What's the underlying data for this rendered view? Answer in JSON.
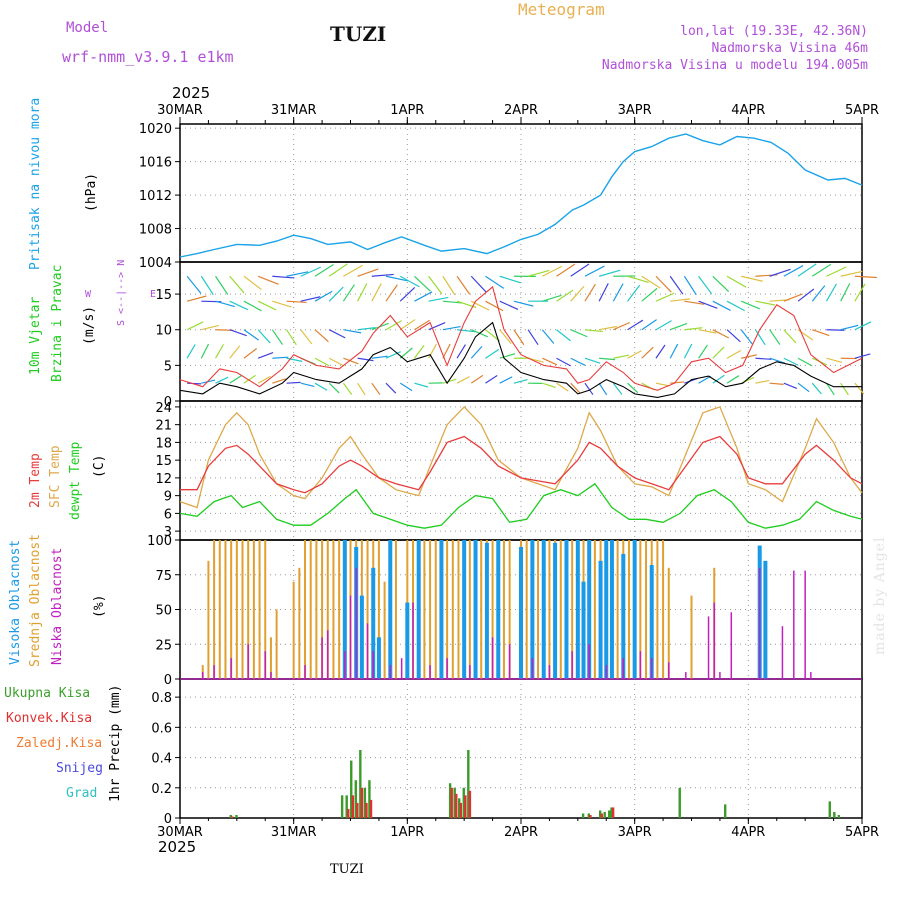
{
  "header": {
    "model_label": "Model",
    "model_name": "wrf-nmm_v3.9.1  e1km",
    "station": "TUZI",
    "title": "Meteogram",
    "coords": "lon,lat (19.33E, 42.36N)",
    "elevation": "Nadmorska Visina 46m",
    "model_elevation": "Nadmorska Visina u modelu 194.005m",
    "year_top": "2025",
    "year_bottom": "2025",
    "footer_station": "TUZI",
    "watermark": "made by Angel"
  },
  "time_axis": {
    "labels": [
      "30MAR",
      "31MAR",
      "1APR",
      "2APR",
      "3APR",
      "4APR",
      "5APR"
    ]
  },
  "panels": {
    "pressure": {
      "ylabel": "Pritisak na nivou mora",
      "unit": "(hPa)",
      "ticks": [
        "1004",
        "1008",
        "1012",
        "1016",
        "1020"
      ]
    },
    "wind": {
      "ylabel1": "10m Vjetar",
      "ylabel2": "Brzina i Pravac",
      "unit": "(m/s)",
      "ticks": [
        "0",
        "5",
        "10",
        "15"
      ],
      "compass_ns": "S <--|--> N",
      "compass_w": "W",
      "compass_e": "E"
    },
    "temp": {
      "ylabel1": "2m Temp",
      "ylabel2": "SFC Temp",
      "ylabel3": "dewpt Temp",
      "unit": "(C)",
      "ticks": [
        "3",
        "6",
        "9",
        "12",
        "15",
        "18",
        "21",
        "24"
      ]
    },
    "cloud": {
      "ylabel1": "Visoka Oblacnost",
      "ylabel2": "Srednja Oblacnost",
      "ylabel3": "Niska Oblacnost",
      "unit": "(%)",
      "ticks": [
        "0",
        "25",
        "50",
        "75",
        "100"
      ]
    },
    "precip": {
      "legend": [
        "Ukupna Kisa",
        "Konvek.Kisa",
        "Zaledj.Kisa",
        "Snijeg",
        "Grad"
      ],
      "unit": "1hr Precip (mm)",
      "ticks": [
        "0",
        "0.2",
        "0.4",
        "0.6",
        "0.8"
      ]
    }
  },
  "colors": {
    "pressure": "#1aa3e8",
    "t2m": "#e83c3c",
    "sfc": "#dea84a",
    "dewpoint": "#1fcc1f",
    "wind_speed": "#000000",
    "wind_gust": "#e83c3c",
    "high_cloud": "#1a9ae6",
    "mid_cloud": "#e0a030",
    "low_cloud": "#c020c0",
    "precip_total": "#3a9a2a",
    "precip_conv": "#e03030",
    "precip_frz": "#f07a30",
    "precip_snow": "#4a4ae0",
    "precip_hail": "#30c0c0"
  },
  "chart_data": [
    {
      "type": "line",
      "title": "Pritisak na nivou mora (hPa)",
      "x_unit": "days since 30MAR 00UTC",
      "ylim": [
        1004,
        1020.5
      ],
      "series": [
        {
          "name": "Pritisak na nivou mora",
          "x": [
            0,
            0.15,
            0.3,
            0.5,
            0.7,
            0.85,
            1.0,
            1.15,
            1.3,
            1.5,
            1.65,
            1.8,
            1.95,
            2.15,
            2.3,
            2.5,
            2.7,
            2.85,
            3.0,
            3.15,
            3.3,
            3.45,
            3.55,
            3.7,
            3.8,
            3.9,
            4.0,
            4.15,
            4.3,
            4.45,
            4.6,
            4.75,
            4.9,
            5.05,
            5.2,
            5.35,
            5.5,
            5.7,
            5.85,
            6.0
          ],
          "values": [
            1004.6,
            1005.0,
            1005.5,
            1006.1,
            1006.0,
            1006.5,
            1007.2,
            1006.8,
            1006.1,
            1006.4,
            1005.5,
            1006.3,
            1007.0,
            1006.0,
            1005.3,
            1005.6,
            1005.0,
            1005.8,
            1006.7,
            1007.3,
            1008.5,
            1010.2,
            1010.8,
            1012.0,
            1014.2,
            1016.0,
            1017.2,
            1017.8,
            1018.8,
            1019.3,
            1018.5,
            1018.0,
            1019.0,
            1018.8,
            1018.3,
            1017.0,
            1015.0,
            1013.8,
            1014.0,
            1013.2
          ]
        }
      ]
    },
    {
      "type": "line",
      "title": "10m Vjetar Brzina i Pravac (m/s)",
      "ylim": [
        0,
        19.5
      ],
      "series": [
        {
          "name": "Brzina",
          "x": [
            0,
            0.2,
            0.35,
            0.5,
            0.7,
            0.9,
            1.0,
            1.2,
            1.4,
            1.6,
            1.7,
            1.85,
            2.0,
            2.2,
            2.35,
            2.5,
            2.6,
            2.75,
            2.85,
            3.0,
            3.2,
            3.4,
            3.5,
            3.6,
            3.75,
            3.9,
            4.0,
            4.2,
            4.35,
            4.5,
            4.65,
            4.8,
            4.95,
            5.1,
            5.25,
            5.4,
            5.55,
            5.75,
            6.0
          ],
          "values": [
            1.5,
            1.0,
            2.5,
            2.0,
            1.0,
            2.5,
            4.0,
            3.0,
            2.5,
            4.5,
            6.5,
            7.5,
            5.5,
            6.5,
            2.5,
            6.0,
            9.0,
            11.0,
            6.0,
            4.0,
            3.0,
            2.5,
            1.0,
            1.5,
            3.0,
            2.0,
            1.0,
            0.5,
            1.0,
            3.0,
            3.5,
            2.0,
            2.5,
            4.5,
            5.5,
            5.0,
            3.5,
            2.0,
            2.0
          ]
        },
        {
          "name": "Udar",
          "x": [
            0,
            0.2,
            0.35,
            0.5,
            0.7,
            0.9,
            1.0,
            1.2,
            1.4,
            1.6,
            1.7,
            1.85,
            2.0,
            2.2,
            2.35,
            2.5,
            2.6,
            2.75,
            2.85,
            3.0,
            3.2,
            3.4,
            3.5,
            3.6,
            3.75,
            3.9,
            4.0,
            4.2,
            4.35,
            4.5,
            4.65,
            4.8,
            4.95,
            5.1,
            5.25,
            5.4,
            5.55,
            5.75,
            6.0
          ],
          "values": [
            3,
            2,
            4.5,
            4,
            2,
            4.5,
            6.5,
            5,
            4.5,
            7,
            9.5,
            12,
            9,
            11,
            5,
            11,
            14,
            16,
            10,
            6.5,
            5,
            4.5,
            2.5,
            3,
            5.5,
            4,
            2.5,
            1.5,
            2.5,
            5.5,
            6,
            4,
            5,
            10,
            13.5,
            12,
            6.5,
            4,
            6
          ]
        }
      ]
    },
    {
      "type": "line",
      "title": "Temperatura (C)",
      "ylim": [
        1.5,
        25
      ],
      "series": [
        {
          "name": "2m Temp",
          "x": [
            0,
            0.15,
            0.25,
            0.4,
            0.5,
            0.6,
            0.7,
            0.85,
            1.0,
            1.1,
            1.25,
            1.4,
            1.5,
            1.6,
            1.75,
            1.9,
            2.0,
            2.1,
            2.2,
            2.35,
            2.5,
            2.65,
            2.8,
            3.0,
            3.15,
            3.3,
            3.5,
            3.6,
            3.7,
            3.85,
            4.0,
            4.15,
            4.3,
            4.45,
            4.6,
            4.75,
            4.9,
            5.0,
            5.15,
            5.3,
            5.5,
            5.6,
            5.75,
            5.9,
            6.0
          ],
          "values": [
            10,
            10,
            14,
            17,
            17.5,
            16,
            14,
            11,
            10,
            9.5,
            11,
            14,
            15,
            14,
            12,
            11,
            10.5,
            10,
            13,
            18,
            19,
            17,
            14,
            12,
            11.5,
            11,
            15,
            18,
            17,
            14,
            12,
            11,
            10,
            14,
            18,
            19,
            16,
            12,
            11,
            11,
            16,
            17.5,
            15,
            12,
            11
          ]
        },
        {
          "name": "SFC Temp",
          "x": [
            0,
            0.15,
            0.25,
            0.4,
            0.5,
            0.6,
            0.7,
            0.85,
            1.0,
            1.1,
            1.25,
            1.4,
            1.5,
            1.6,
            1.75,
            1.9,
            2.0,
            2.1,
            2.2,
            2.35,
            2.5,
            2.65,
            2.8,
            3.0,
            3.15,
            3.3,
            3.5,
            3.6,
            3.7,
            3.85,
            4.0,
            4.15,
            4.3,
            4.45,
            4.6,
            4.75,
            4.9,
            5.0,
            5.15,
            5.3,
            5.5,
            5.6,
            5.75,
            5.9,
            6.0
          ],
          "values": [
            8,
            7,
            15,
            21,
            23,
            21,
            16,
            11,
            9,
            8.5,
            12,
            17,
            19,
            16,
            12,
            10,
            9.5,
            9,
            14,
            21,
            24,
            21,
            15,
            12,
            11,
            10,
            17,
            23,
            20,
            14,
            11,
            10.5,
            9,
            16,
            23,
            24,
            17,
            11,
            10,
            8,
            17,
            22,
            18,
            12,
            9.5
          ]
        },
        {
          "name": "dewpt Temp",
          "x": [
            0,
            0.15,
            0.3,
            0.45,
            0.55,
            0.7,
            0.85,
            1.0,
            1.15,
            1.3,
            1.45,
            1.55,
            1.7,
            1.85,
            2.0,
            2.15,
            2.3,
            2.45,
            2.6,
            2.75,
            2.9,
            3.05,
            3.2,
            3.35,
            3.5,
            3.65,
            3.8,
            3.95,
            4.1,
            4.25,
            4.4,
            4.55,
            4.7,
            4.85,
            5.0,
            5.15,
            5.3,
            5.45,
            5.6,
            5.75,
            5.9,
            6.0
          ],
          "values": [
            6,
            5.5,
            8,
            9,
            7,
            8,
            5,
            4,
            4,
            6,
            8.5,
            10,
            6,
            5,
            4,
            3.5,
            4,
            7,
            9,
            8.5,
            4.5,
            5,
            9,
            10,
            9,
            11,
            7,
            5,
            5,
            4.5,
            6,
            9,
            10,
            8,
            4.5,
            3.5,
            4,
            5,
            8,
            6.5,
            5.5,
            5
          ]
        }
      ]
    },
    {
      "type": "bar",
      "title": "Oblacnost (%)",
      "ylim": [
        0,
        100
      ],
      "series": [
        {
          "name": "Visoka Oblacnost",
          "x": [
            1.45,
            1.55,
            1.6,
            1.7,
            1.75,
            1.85,
            2.0,
            2.1,
            2.3,
            2.5,
            2.6,
            2.7,
            2.8,
            3.0,
            3.1,
            3.2,
            3.3,
            3.4,
            3.5,
            3.55,
            3.6,
            3.7,
            3.75,
            3.8,
            3.9,
            4.0,
            4.15,
            5.1,
            5.15
          ],
          "values": [
            100,
            95,
            60,
            80,
            30,
            100,
            55,
            100,
            100,
            100,
            100,
            98,
            100,
            95,
            100,
            100,
            98,
            100,
            100,
            70,
            100,
            85,
            100,
            100,
            90,
            100,
            82,
            96,
            85
          ]
        },
        {
          "name": "Srednja Oblacnost",
          "x": [
            0.2,
            0.25,
            0.3,
            0.35,
            0.4,
            0.45,
            0.5,
            0.55,
            0.6,
            0.65,
            0.7,
            0.75,
            0.8,
            0.85,
            1.0,
            1.05,
            1.1,
            1.15,
            1.2,
            1.25,
            1.3,
            1.35,
            1.4,
            1.45,
            1.5,
            1.55,
            1.6,
            1.65,
            1.7,
            1.75,
            1.8,
            1.85,
            1.9,
            2.0,
            2.05,
            2.1,
            2.15,
            2.2,
            2.25,
            2.3,
            2.35,
            2.4,
            2.45,
            2.5,
            2.55,
            2.6,
            2.65,
            2.7,
            2.75,
            2.8,
            2.85,
            2.9,
            3.0,
            3.05,
            3.1,
            3.15,
            3.2,
            3.25,
            3.3,
            3.35,
            3.4,
            3.45,
            3.5,
            3.55,
            3.6,
            3.65,
            3.7,
            3.75,
            3.8,
            3.85,
            3.9,
            3.95,
            4.0,
            4.05,
            4.1,
            4.15,
            4.2,
            4.25,
            4.3,
            4.5,
            4.7,
            5.1
          ],
          "values": [
            10,
            85,
            100,
            100,
            100,
            100,
            100,
            100,
            100,
            100,
            100,
            100,
            30,
            50,
            70,
            80,
            100,
            100,
            100,
            100,
            100,
            100,
            100,
            100,
            100,
            100,
            100,
            100,
            100,
            100,
            70,
            100,
            100,
            100,
            100,
            100,
            100,
            100,
            100,
            100,
            100,
            100,
            100,
            100,
            100,
            100,
            100,
            100,
            100,
            100,
            100,
            100,
            100,
            100,
            100,
            100,
            100,
            100,
            100,
            100,
            100,
            100,
            100,
            100,
            100,
            100,
            100,
            100,
            100,
            100,
            100,
            100,
            100,
            100,
            100,
            100,
            100,
            100,
            80,
            60,
            80,
            82
          ]
        },
        {
          "name": "Niska Oblacnost",
          "x": [
            0.2,
            0.3,
            0.45,
            0.6,
            0.75,
            0.8,
            1.1,
            1.25,
            1.3,
            1.45,
            1.5,
            1.55,
            1.65,
            1.7,
            1.85,
            1.95,
            2.05,
            2.2,
            2.35,
            2.55,
            2.75,
            2.9,
            3.1,
            3.25,
            3.45,
            3.6,
            3.75,
            3.9,
            4.05,
            4.15,
            4.3,
            4.45,
            4.65,
            4.7,
            4.75,
            4.85,
            5.1,
            5.3,
            5.4,
            5.5,
            5.55
          ],
          "values": [
            5,
            10,
            15,
            25,
            20,
            5,
            10,
            30,
            35,
            20,
            60,
            80,
            40,
            20,
            10,
            15,
            55,
            10,
            15,
            10,
            30,
            25,
            15,
            10,
            20,
            25,
            10,
            15,
            20,
            15,
            12,
            5,
            45,
            55,
            5,
            48,
            80,
            38,
            78,
            78,
            5
          ]
        }
      ]
    },
    {
      "type": "bar",
      "title": "1hr Precip (mm)",
      "ylim": [
        0,
        0.92
      ],
      "series": [
        {
          "name": "Ukupna Kisa",
          "x": [
            0.45,
            0.5,
            1.43,
            1.47,
            1.51,
            1.55,
            1.59,
            1.63,
            1.67,
            2.38,
            2.42,
            2.46,
            2.5,
            2.54,
            3.55,
            3.6,
            3.7,
            3.74,
            3.78,
            3.8,
            4.4,
            4.8,
            5.72,
            5.76,
            5.8
          ],
          "values": [
            0.02,
            0.02,
            0.15,
            0.15,
            0.38,
            0.25,
            0.45,
            0.2,
            0.25,
            0.23,
            0.2,
            0.13,
            0.2,
            0.45,
            0.03,
            0.03,
            0.05,
            0.04,
            0.05,
            0.07,
            0.2,
            0.09,
            0.11,
            0.04,
            0.02
          ]
        },
        {
          "name": "Konvek.Kisa",
          "x": [
            0.45,
            1.47,
            1.51,
            1.55,
            1.59,
            1.63,
            1.67,
            2.38,
            2.42,
            2.46,
            2.5,
            2.54,
            3.6,
            3.7,
            3.8
          ],
          "values": [
            0.01,
            0.06,
            0.15,
            0.1,
            0.2,
            0.1,
            0.12,
            0.2,
            0.16,
            0.1,
            0.15,
            0.18,
            0.02,
            0.03,
            0.07
          ]
        }
      ]
    }
  ]
}
